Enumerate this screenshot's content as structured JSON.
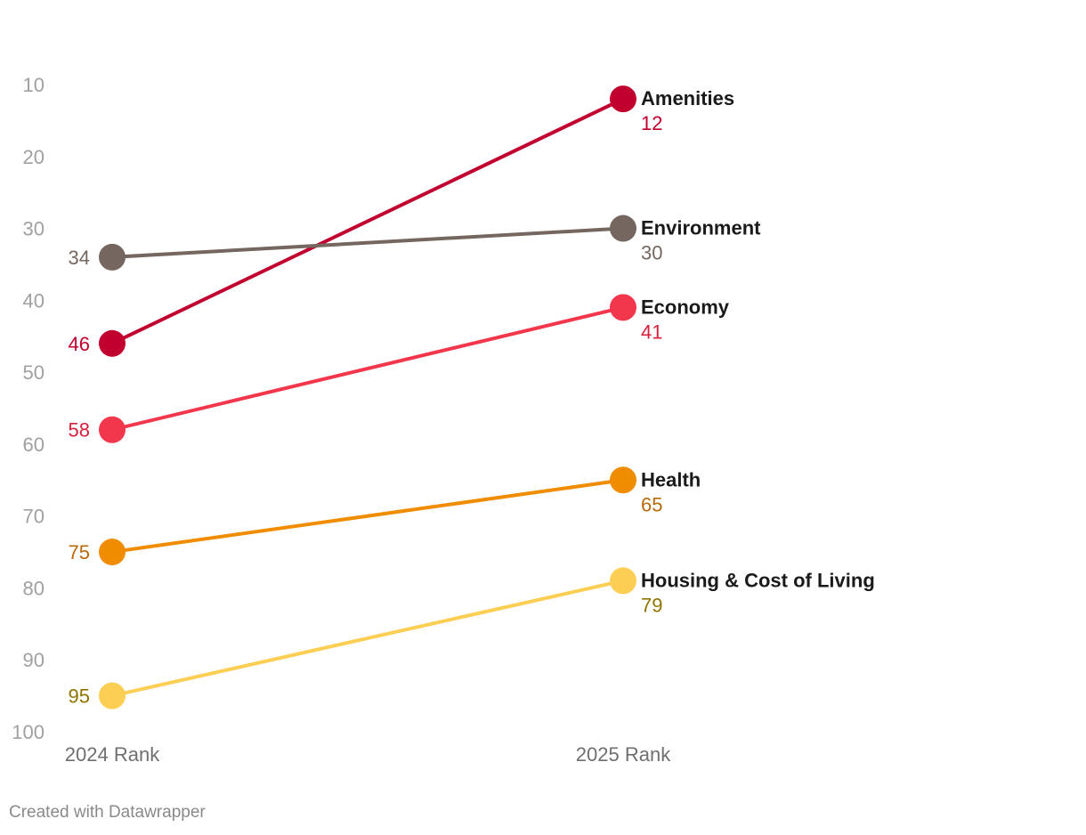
{
  "chart_data": {
    "type": "slope",
    "x_categories": [
      "2024 Rank",
      "2025 Rank"
    ],
    "y_axis": {
      "ticks": [
        10,
        20,
        30,
        40,
        50,
        60,
        70,
        80,
        90,
        100
      ],
      "range": [
        10,
        100
      ],
      "inverted": false
    },
    "series": [
      {
        "name": "Amenities",
        "values": [
          46,
          12
        ],
        "color": "#c1002f",
        "value_color": "#c1002f"
      },
      {
        "name": "Environment",
        "values": [
          34,
          30
        ],
        "color": "#756760",
        "value_color": "#756760"
      },
      {
        "name": "Economy",
        "values": [
          58,
          41
        ],
        "color": "#f2374d",
        "value_color": "#d81f3c"
      },
      {
        "name": "Health",
        "values": [
          75,
          65
        ],
        "color": "#f08c00",
        "value_color": "#b8690a"
      },
      {
        "name": "Housing & Cost of Living",
        "values": [
          95,
          79
        ],
        "color": "#fdce54",
        "value_color": "#8f7400"
      }
    ]
  },
  "footer": {
    "credit": "Created with Datawrapper"
  }
}
